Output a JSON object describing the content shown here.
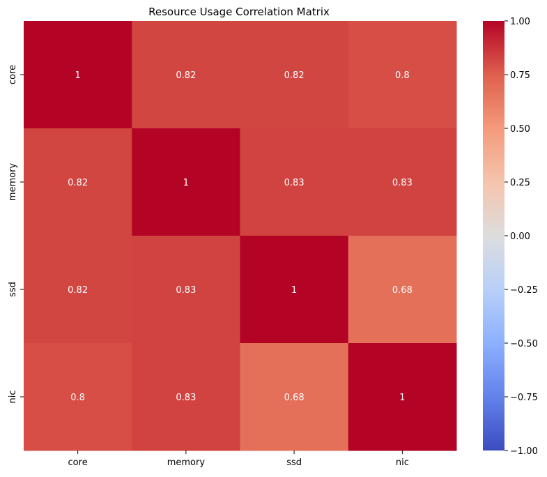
{
  "chart_data": {
    "type": "heatmap",
    "title": "Resource Usage Correlation Matrix",
    "xlabel": "",
    "ylabel": "",
    "x_categories": [
      "core",
      "memory",
      "ssd",
      "nic"
    ],
    "y_categories": [
      "core",
      "memory",
      "ssd",
      "nic"
    ],
    "values": [
      [
        1,
        0.82,
        0.82,
        0.8
      ],
      [
        0.82,
        1,
        0.83,
        0.83
      ],
      [
        0.82,
        0.83,
        1,
        0.68
      ],
      [
        0.8,
        0.83,
        0.68,
        1
      ]
    ],
    "annotations": [
      [
        "1",
        "0.82",
        "0.82",
        "0.8"
      ],
      [
        "0.82",
        "1",
        "0.83",
        "0.83"
      ],
      [
        "0.82",
        "0.83",
        "1",
        "0.68"
      ],
      [
        "0.8",
        "0.83",
        "0.68",
        "1"
      ]
    ],
    "colormap": "coolwarm",
    "vmin": -1,
    "vmax": 1,
    "colorbar_ticks": [
      1.0,
      0.75,
      0.5,
      0.25,
      0.0,
      -0.25,
      -0.5,
      -0.75,
      -1.0
    ],
    "colorbar_tick_labels": [
      "1.00",
      "0.75",
      "0.50",
      "0.25",
      "0.00",
      "−0.25",
      "−0.50",
      "−0.75",
      "−1.00"
    ],
    "grid": false,
    "colorbar_position": "right"
  }
}
